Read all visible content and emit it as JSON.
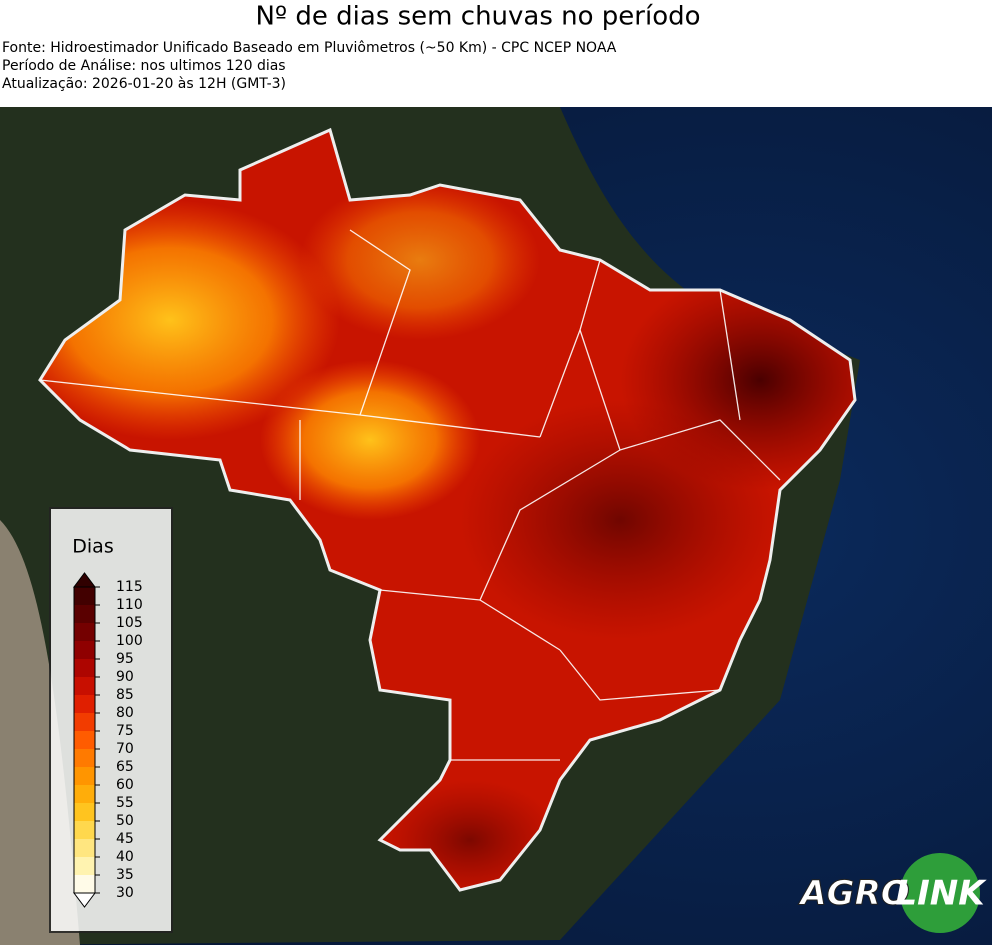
{
  "title": "Nº de dias sem chuvas no período",
  "subtitle_lines": [
    "Fonte: Hidroestimador Unificado Baseado em Pluviômetros (~50 Km) - CPC NCEP NOAA",
    "Período de Análise: nos ultimos 120 dias",
    "Atualização: 2026-01-20 às 12H (GMT-3)"
  ],
  "colorbar": {
    "title": "Dias",
    "ticks": [
      30,
      35,
      40,
      45,
      50,
      55,
      60,
      65,
      70,
      75,
      80,
      85,
      90,
      95,
      100,
      105,
      110,
      115
    ],
    "colors": [
      "#fffbe8",
      "#fff3b0",
      "#ffe680",
      "#ffd84d",
      "#ffc41f",
      "#ffad0a",
      "#ff9500",
      "#ff7a00",
      "#ff5c00",
      "#f23c00",
      "#e01f00",
      "#c80f00",
      "#ad0500",
      "#8f0000",
      "#740000",
      "#5a0000",
      "#420000"
    ],
    "under_color": "#ffffff",
    "over_color": "#300000"
  },
  "logo": {
    "left": "AGRO",
    "right": "LINK"
  }
}
